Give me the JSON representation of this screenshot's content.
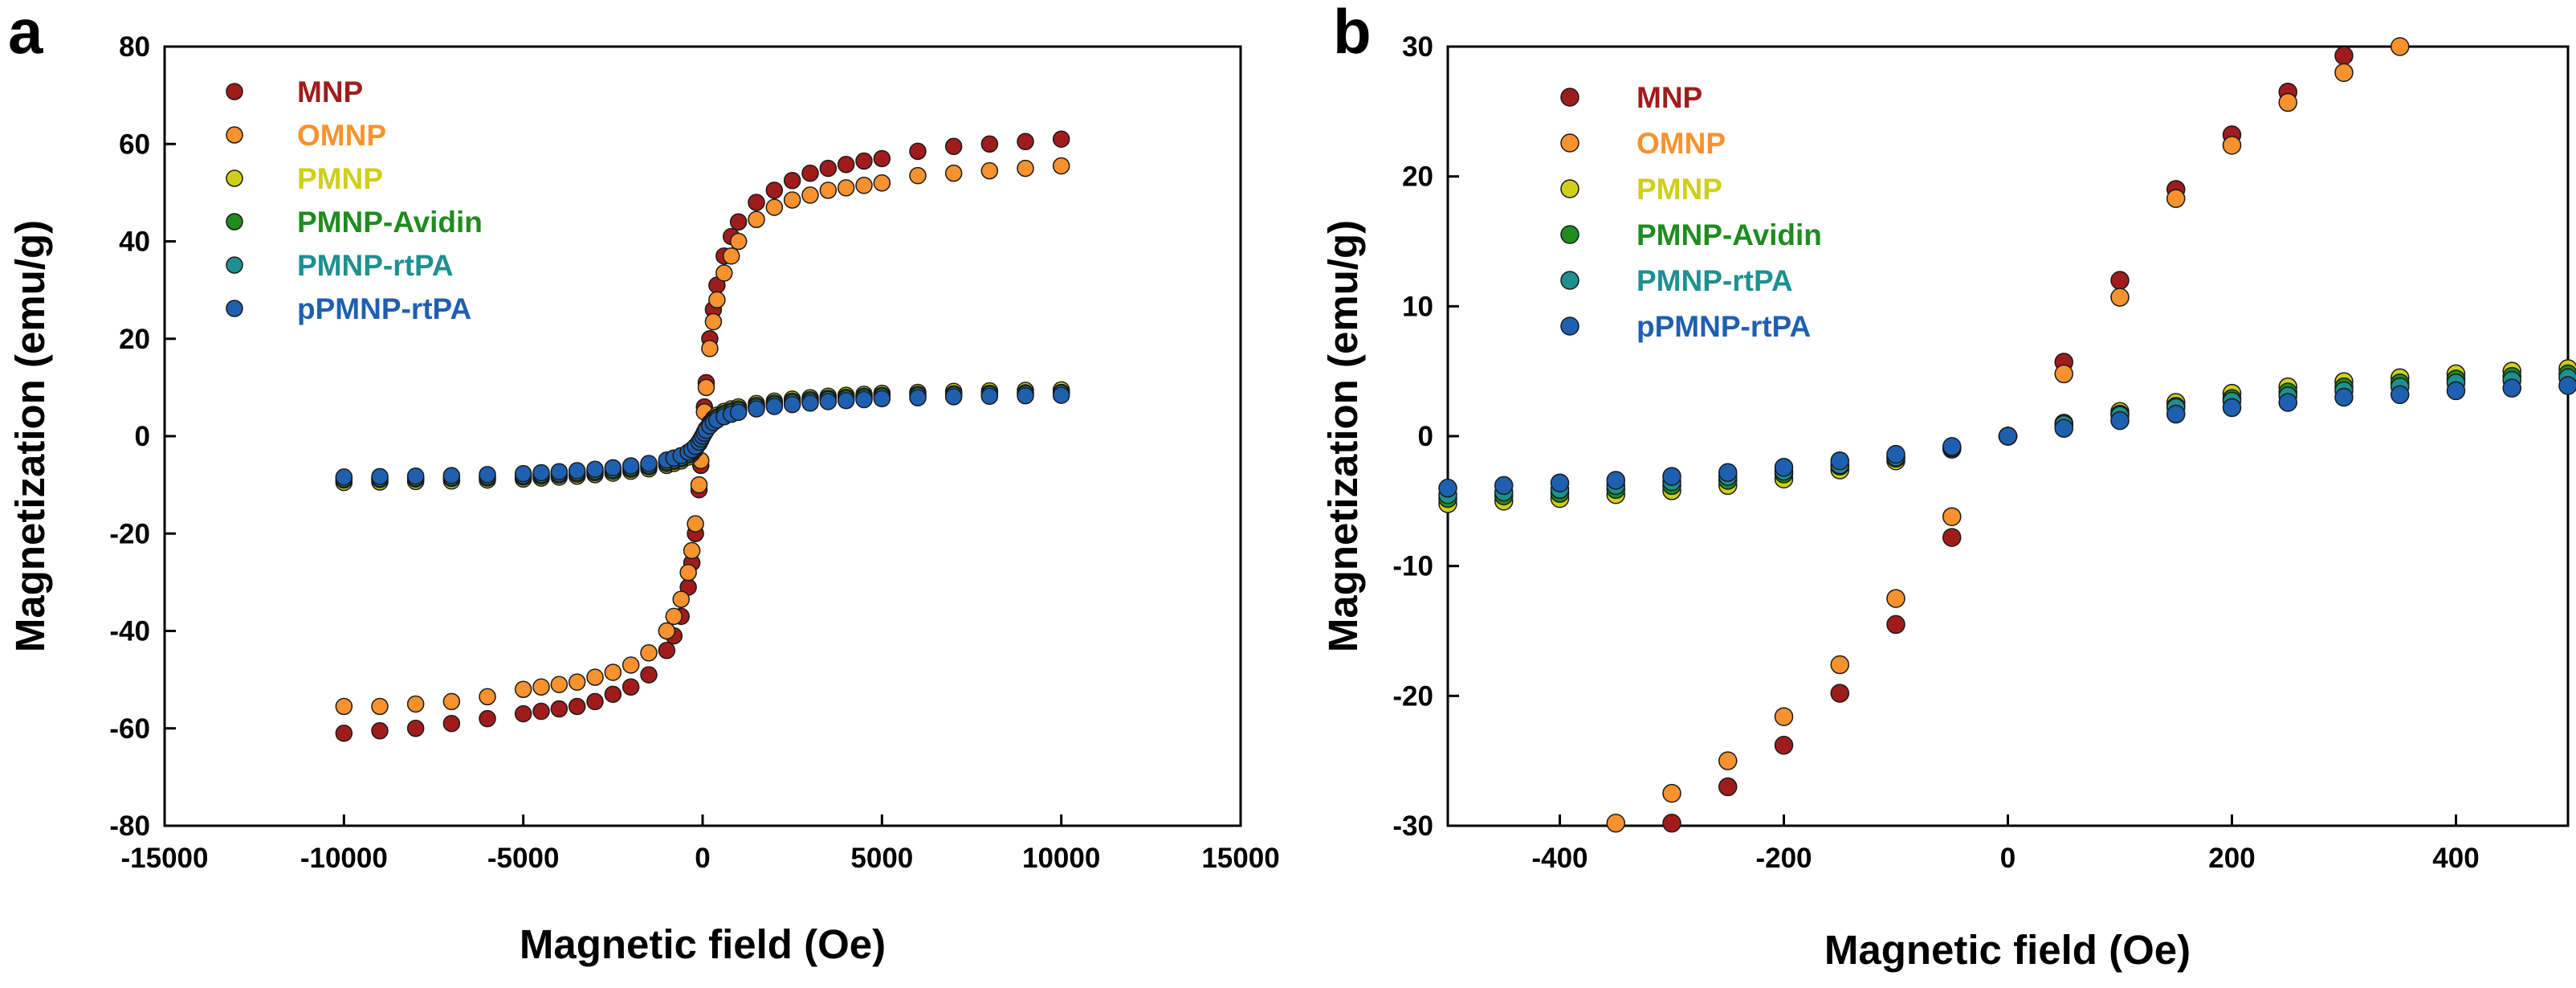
{
  "series_styles": [
    {
      "name": "MNP",
      "color": "#A01C1C"
    },
    {
      "name": "OMNP",
      "color": "#F7922E"
    },
    {
      "name": "PMNP",
      "color": "#CFCF1A"
    },
    {
      "name": "PMNP-Avidin",
      "color": "#1E8C1E"
    },
    {
      "name": "PMNP-rtPA",
      "color": "#1E9090"
    },
    {
      "name": "pPMNP-rtPA",
      "color": "#1F5FB0"
    }
  ],
  "chart_data": [
    {
      "panel_label": "a",
      "type": "scatter",
      "xlabel": "Magnetic field (Oe)",
      "ylabel": "Magnetization (emu/g)",
      "xlim": [
        -15000,
        15000
      ],
      "ylim": [
        -80,
        80
      ],
      "xticks": [
        -15000,
        -10000,
        -5000,
        0,
        5000,
        10000,
        15000
      ],
      "yticks": [
        -80,
        -60,
        -40,
        -20,
        0,
        20,
        40,
        60,
        80
      ],
      "x": [
        -10000,
        -9000,
        -8000,
        -7000,
        -6000,
        -5000,
        -4500,
        -4000,
        -3500,
        -3000,
        -2500,
        -2000,
        -1500,
        -1000,
        -800,
        -600,
        -400,
        -300,
        -200,
        -100,
        -50,
        0,
        50,
        100,
        200,
        300,
        400,
        600,
        800,
        1000,
        1500,
        2000,
        2500,
        3000,
        3500,
        4000,
        4500,
        5000,
        6000,
        7000,
        8000,
        9000,
        10000
      ],
      "series": [
        {
          "name": "MNP",
          "values": [
            -61,
            -60.5,
            -60,
            -59,
            -58,
            -57,
            -56.5,
            -56,
            -55.5,
            -54.5,
            -53,
            -51.5,
            -49,
            -44,
            -41,
            -37,
            -31,
            -26,
            -20,
            -11,
            -6,
            0,
            6,
            11,
            20,
            26,
            31,
            37,
            41,
            44,
            48,
            50.5,
            52.5,
            54,
            55,
            55.8,
            56.5,
            57,
            58.5,
            59.5,
            60,
            60.5,
            61
          ]
        },
        {
          "name": "OMNP",
          "values": [
            -55.5,
            -55.5,
            -55,
            -54.5,
            -53.5,
            -52,
            -51.5,
            -51,
            -50.5,
            -49.5,
            -48.5,
            -47,
            -44.5,
            -40,
            -37,
            -33.5,
            -28,
            -23.5,
            -18,
            -10,
            -5,
            0,
            5,
            10,
            18,
            23.5,
            28,
            33.5,
            37,
            40,
            44.5,
            47,
            48.5,
            49.5,
            50.5,
            51,
            51.5,
            52,
            53.5,
            54,
            54.5,
            55,
            55.5
          ]
        },
        {
          "name": "PMNP",
          "values": [
            -9.5,
            -9.4,
            -9.3,
            -9.2,
            -9,
            -8.8,
            -8.6,
            -8.4,
            -8.2,
            -7.9,
            -7.6,
            -7.2,
            -6.7,
            -6,
            -5.6,
            -5.1,
            -4.3,
            -3.6,
            -2.7,
            -1.5,
            -0.8,
            0,
            0.8,
            1.5,
            2.7,
            3.6,
            4.3,
            5.1,
            5.6,
            6,
            6.7,
            7.2,
            7.6,
            7.9,
            8.2,
            8.4,
            8.6,
            8.8,
            9,
            9.2,
            9.3,
            9.4,
            9.5
          ]
        },
        {
          "name": "PMNP-Avidin",
          "values": [
            -9,
            -8.9,
            -8.8,
            -8.7,
            -8.6,
            -8.4,
            -8.2,
            -8,
            -7.8,
            -7.5,
            -7.2,
            -6.8,
            -6.3,
            -5.6,
            -5.2,
            -4.7,
            -3.9,
            -3.3,
            -2.5,
            -1.4,
            -0.7,
            0,
            0.7,
            1.4,
            2.5,
            3.3,
            3.9,
            4.7,
            5.2,
            5.6,
            6.3,
            6.8,
            7.2,
            7.5,
            7.8,
            8,
            8.2,
            8.4,
            8.6,
            8.7,
            8.8,
            8.9,
            9
          ]
        },
        {
          "name": "PMNP-rtPA",
          "values": [
            -8.8,
            -8.7,
            -8.6,
            -8.5,
            -8.3,
            -8.1,
            -7.9,
            -7.7,
            -7.5,
            -7.2,
            -6.9,
            -6.5,
            -6,
            -5.3,
            -4.9,
            -4.4,
            -3.7,
            -3.1,
            -2.3,
            -1.3,
            -0.7,
            0,
            0.7,
            1.3,
            2.3,
            3.1,
            3.7,
            4.4,
            4.9,
            5.3,
            6,
            6.5,
            6.9,
            7.2,
            7.5,
            7.7,
            7.9,
            8.1,
            8.3,
            8.5,
            8.6,
            8.7,
            8.8
          ]
        },
        {
          "name": "pPMNP-rtPA",
          "values": [
            -8.4,
            -8.3,
            -8.2,
            -8.1,
            -7.9,
            -7.7,
            -7.5,
            -7.3,
            -7.1,
            -6.8,
            -6.5,
            -6.1,
            -5.6,
            -4.9,
            -4.5,
            -4,
            -3.3,
            -2.8,
            -2.1,
            -1.2,
            -0.6,
            0,
            0.6,
            1.2,
            2.1,
            2.8,
            3.3,
            4,
            4.5,
            4.9,
            5.6,
            6.1,
            6.5,
            6.8,
            7.1,
            7.3,
            7.5,
            7.7,
            7.9,
            8.1,
            8.2,
            8.3,
            8.4
          ]
        }
      ]
    },
    {
      "panel_label": "b",
      "type": "scatter",
      "xlabel": "Magnetic field (Oe)",
      "ylabel": "Magnetization (emu/g)",
      "xlim": [
        -500,
        500
      ],
      "ylim": [
        -30,
        30
      ],
      "xticks": [
        -400,
        -200,
        0,
        200,
        400
      ],
      "yticks": [
        -30,
        -20,
        -10,
        0,
        10,
        20,
        30
      ],
      "x": [
        -500,
        -450,
        -400,
        -350,
        -300,
        -250,
        -200,
        -150,
        -100,
        -50,
        0,
        50,
        100,
        150,
        200,
        250,
        300,
        350,
        400,
        450,
        500
      ],
      "series": [
        {
          "name": "MNP",
          "values": [
            null,
            null,
            null,
            null,
            -29.8,
            -27,
            -23.8,
            -19.8,
            -14.5,
            -7.8,
            0,
            5.7,
            12,
            19,
            23.2,
            26.5,
            29.3,
            null,
            null,
            null,
            null
          ]
        },
        {
          "name": "OMNP",
          "values": [
            null,
            null,
            null,
            -29.8,
            -27.5,
            -25,
            -21.6,
            -17.6,
            -12.5,
            -6.2,
            0,
            4.8,
            10.7,
            18.3,
            22.4,
            25.7,
            28,
            30,
            null,
            null,
            null
          ]
        },
        {
          "name": "PMNP",
          "values": [
            -5.2,
            -5,
            -4.8,
            -4.5,
            -4.2,
            -3.8,
            -3.3,
            -2.6,
            -1.9,
            -1,
            0,
            1,
            1.9,
            2.6,
            3.3,
            3.8,
            4.2,
            4.5,
            4.8,
            5,
            5.2
          ]
        },
        {
          "name": "PMNP-Avidin",
          "values": [
            -4.8,
            -4.6,
            -4.4,
            -4.1,
            -3.8,
            -3.4,
            -2.9,
            -2.3,
            -1.7,
            -0.9,
            0,
            0.9,
            1.7,
            2.3,
            2.9,
            3.4,
            3.8,
            4.1,
            4.4,
            4.6,
            4.8
          ]
        },
        {
          "name": "PMNP-rtPA",
          "values": [
            -4.5,
            -4.3,
            -4.1,
            -3.8,
            -3.5,
            -3.1,
            -2.7,
            -2.2,
            -1.6,
            -0.9,
            0,
            0.9,
            1.6,
            2.2,
            2.7,
            3.1,
            3.5,
            3.8,
            4.1,
            4.3,
            4.5
          ]
        },
        {
          "name": "pPMNP-rtPA",
          "values": [
            -4,
            -3.8,
            -3.6,
            -3.4,
            -3.1,
            -2.8,
            -2.4,
            -1.9,
            -1.4,
            -0.8,
            0,
            0.6,
            1.2,
            1.7,
            2.2,
            2.6,
            3,
            3.2,
            3.5,
            3.7,
            3.9
          ]
        }
      ]
    }
  ]
}
